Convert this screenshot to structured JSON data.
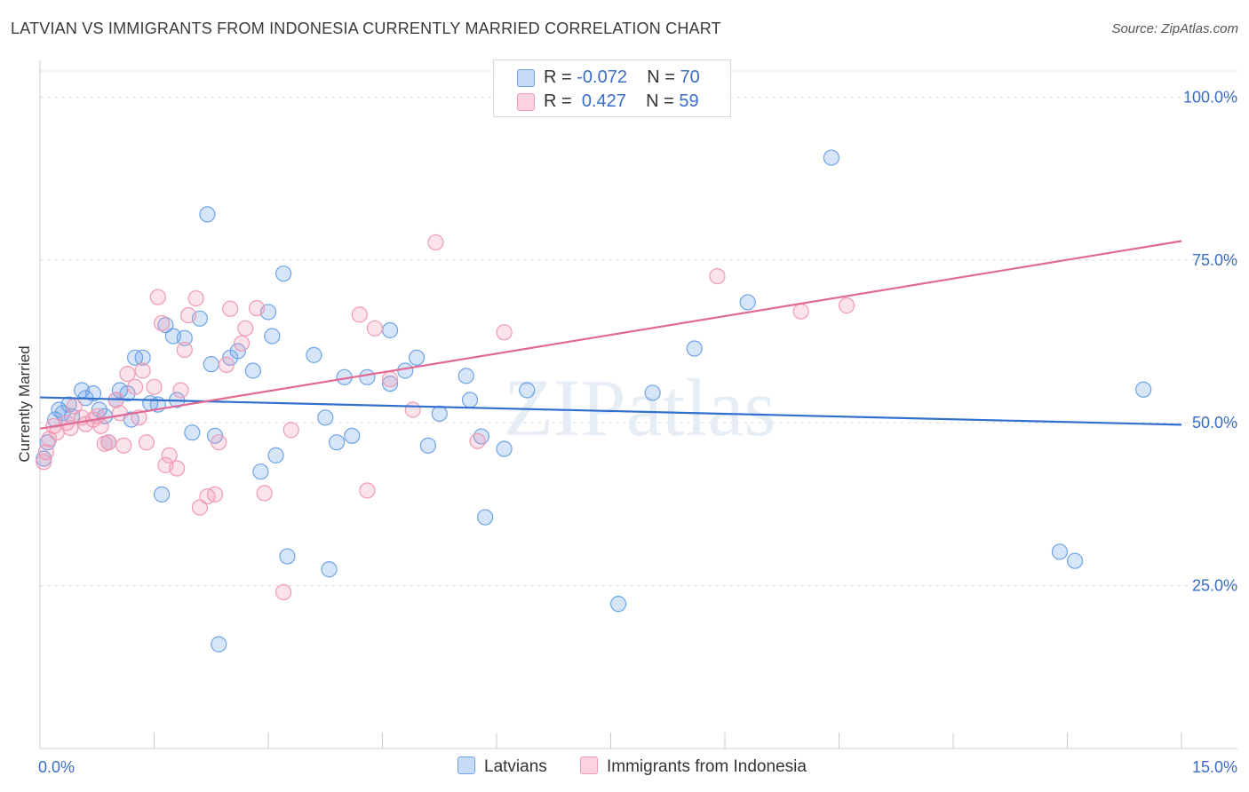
{
  "title": "LATVIAN VS IMMIGRANTS FROM INDONESIA CURRENTLY MARRIED CORRELATION CHART",
  "source": "Source: ZipAtlas.com",
  "watermark": "ZIPatlas",
  "legend": {
    "rows": [
      {
        "r_label": "R =",
        "r_value": "-0.072",
        "n_label": "N =",
        "n_value": "70",
        "color": "#6fa3e6"
      },
      {
        "r_label": "R =",
        "r_value": "0.427",
        "n_label": "N =",
        "n_value": "59",
        "color": "#f09ab5"
      }
    ]
  },
  "bottom_legend": [
    {
      "label": "Latvians",
      "color": "#6fa3e6"
    },
    {
      "label": "Immigrants from Indonesia",
      "color": "#f09ab5"
    }
  ],
  "chart_data": {
    "type": "scatter",
    "title": "LATVIAN VS IMMIGRANTS FROM INDONESIA CURRENTLY MARRIED CORRELATION CHART",
    "ylabel": "Currently Married",
    "xlabel": "",
    "xlim": [
      0,
      15
    ],
    "ylim": [
      0,
      104
    ],
    "x_tick_labels": {
      "left": "0.0%",
      "right": "15.0%"
    },
    "y_ticks": [
      {
        "value": 25,
        "label": "25.0%"
      },
      {
        "value": 50,
        "label": "50.0%"
      },
      {
        "value": 75,
        "label": "75.0%"
      },
      {
        "value": 100,
        "label": "100.0%"
      }
    ],
    "grid": "horizontal dashed",
    "series": [
      {
        "name": "Latvians",
        "color": "#6fa3e6",
        "trend": {
          "x": [
            0,
            15
          ],
          "y": [
            53.9,
            49.7
          ]
        },
        "points": [
          [
            0.05,
            44.5
          ],
          [
            0.1,
            47
          ],
          [
            0.2,
            50.5
          ],
          [
            0.25,
            52
          ],
          [
            0.3,
            51.5
          ],
          [
            0.38,
            52.8
          ],
          [
            0.42,
            51
          ],
          [
            0.55,
            55
          ],
          [
            0.6,
            53.8
          ],
          [
            0.7,
            54.5
          ],
          [
            0.78,
            52
          ],
          [
            0.85,
            51
          ],
          [
            0.9,
            47
          ],
          [
            1.0,
            53.5
          ],
          [
            1.05,
            55
          ],
          [
            1.15,
            54.5
          ],
          [
            1.2,
            50.5
          ],
          [
            1.25,
            60
          ],
          [
            1.35,
            60
          ],
          [
            1.45,
            53
          ],
          [
            1.55,
            52.8
          ],
          [
            1.6,
            39
          ],
          [
            1.65,
            65
          ],
          [
            1.75,
            63.3
          ],
          [
            1.8,
            53.5
          ],
          [
            1.9,
            63
          ],
          [
            2.0,
            48.5
          ],
          [
            2.1,
            66
          ],
          [
            2.2,
            82
          ],
          [
            2.25,
            59
          ],
          [
            2.3,
            48
          ],
          [
            2.35,
            16
          ],
          [
            2.5,
            60
          ],
          [
            2.6,
            61
          ],
          [
            2.8,
            58
          ],
          [
            2.9,
            42.5
          ],
          [
            3.0,
            67
          ],
          [
            3.05,
            63.3
          ],
          [
            3.1,
            45
          ],
          [
            3.2,
            72.9
          ],
          [
            3.25,
            29.5
          ],
          [
            3.6,
            60.4
          ],
          [
            3.75,
            50.8
          ],
          [
            3.8,
            27.5
          ],
          [
            3.9,
            47
          ],
          [
            4.0,
            57
          ],
          [
            4.1,
            48
          ],
          [
            4.3,
            57
          ],
          [
            4.6,
            56
          ],
          [
            4.6,
            64.2
          ],
          [
            4.8,
            58
          ],
          [
            4.95,
            60
          ],
          [
            5.1,
            46.5
          ],
          [
            5.25,
            51.4
          ],
          [
            5.6,
            57.2
          ],
          [
            5.65,
            53.5
          ],
          [
            5.8,
            47.9
          ],
          [
            5.85,
            35.5
          ],
          [
            6.1,
            46
          ],
          [
            6.4,
            55
          ],
          [
            7.6,
            22.2
          ],
          [
            8.05,
            54.6
          ],
          [
            8.6,
            61.4
          ],
          [
            9.3,
            68.5
          ],
          [
            10.4,
            90.7
          ],
          [
            13.4,
            30.2
          ],
          [
            13.6,
            28.8
          ],
          [
            14.5,
            55.1
          ]
        ]
      },
      {
        "name": "Immigrants from Indonesia",
        "color": "#f09ab5",
        "trend": {
          "x": [
            0,
            15
          ],
          "y": [
            49.1,
            77.9
          ]
        },
        "points": [
          [
            0.05,
            44
          ],
          [
            0.08,
            45.5
          ],
          [
            0.12,
            47.5
          ],
          [
            0.18,
            49.5
          ],
          [
            0.22,
            48.5
          ],
          [
            0.35,
            50
          ],
          [
            0.4,
            49.2
          ],
          [
            0.45,
            52.5
          ],
          [
            0.55,
            50.8
          ],
          [
            0.6,
            49.8
          ],
          [
            0.7,
            50.5
          ],
          [
            0.75,
            51
          ],
          [
            0.8,
            49.5
          ],
          [
            0.85,
            46.8
          ],
          [
            0.9,
            47
          ],
          [
            1.0,
            53.5
          ],
          [
            1.05,
            51.5
          ],
          [
            1.1,
            46.5
          ],
          [
            1.15,
            57.5
          ],
          [
            1.25,
            55.5
          ],
          [
            1.3,
            50.8
          ],
          [
            1.35,
            58
          ],
          [
            1.4,
            47
          ],
          [
            1.5,
            55.5
          ],
          [
            1.55,
            69.3
          ],
          [
            1.6,
            65.3
          ],
          [
            1.65,
            43.5
          ],
          [
            1.7,
            45
          ],
          [
            1.8,
            43
          ],
          [
            1.85,
            55
          ],
          [
            1.9,
            61.2
          ],
          [
            1.95,
            66.5
          ],
          [
            2.05,
            69.1
          ],
          [
            2.1,
            37
          ],
          [
            2.2,
            38.7
          ],
          [
            2.3,
            39
          ],
          [
            2.35,
            47
          ],
          [
            2.45,
            58.9
          ],
          [
            2.5,
            67.5
          ],
          [
            2.65,
            62.2
          ],
          [
            2.7,
            64.5
          ],
          [
            2.85,
            67.6
          ],
          [
            2.95,
            39.2
          ],
          [
            3.2,
            24
          ],
          [
            3.3,
            48.9
          ],
          [
            4.2,
            66.6
          ],
          [
            4.3,
            39.6
          ],
          [
            4.4,
            64.5
          ],
          [
            4.6,
            56.7
          ],
          [
            4.9,
            52
          ],
          [
            5.2,
            77.7
          ],
          [
            5.75,
            47.2
          ],
          [
            6.1,
            63.9
          ],
          [
            8.9,
            72.5
          ],
          [
            10.0,
            67.1
          ],
          [
            10.6,
            68
          ]
        ]
      }
    ]
  }
}
